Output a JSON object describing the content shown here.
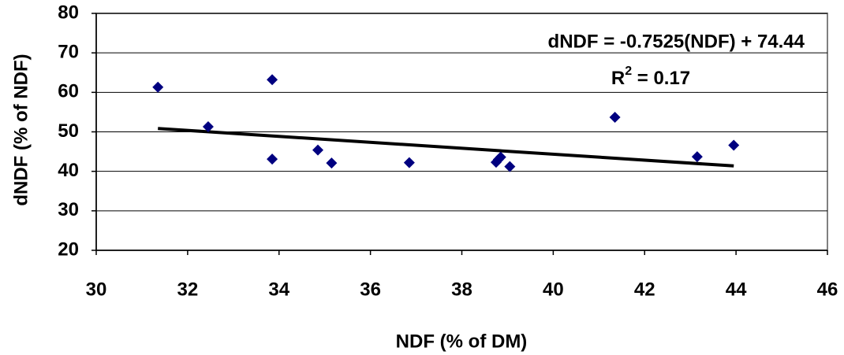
{
  "chart_data": {
    "type": "scatter",
    "x_label": "NDF (% of DM)",
    "y_label": "dNDF (% of NDF)",
    "equation": "dNDF = -0.7525(NDF) + 74.44",
    "r_squared": {
      "base": "R",
      "sup": "2",
      "rest": " = 0.17"
    },
    "trendline": {
      "slope": -0.7525,
      "intercept": 74.44,
      "color": "#000000"
    },
    "x": [
      31.35,
      32.45,
      33.85,
      33.85,
      34.85,
      35.15,
      36.85,
      38.75,
      38.8,
      38.85,
      39.05,
      41.35,
      43.15,
      43.95
    ],
    "values": [
      61.3,
      51.3,
      63.2,
      43.1,
      45.4,
      42.1,
      42.2,
      42.3,
      43.0,
      43.6,
      41.2,
      53.7,
      43.7,
      46.6
    ],
    "color": "#000080",
    "xlim": [
      30,
      46
    ],
    "xticks": [
      30,
      32,
      34,
      36,
      38,
      40,
      42,
      44,
      46
    ],
    "ylim": [
      20,
      80
    ],
    "yticks": [
      20,
      30,
      40,
      50,
      60,
      70,
      80
    ],
    "grid": true
  }
}
